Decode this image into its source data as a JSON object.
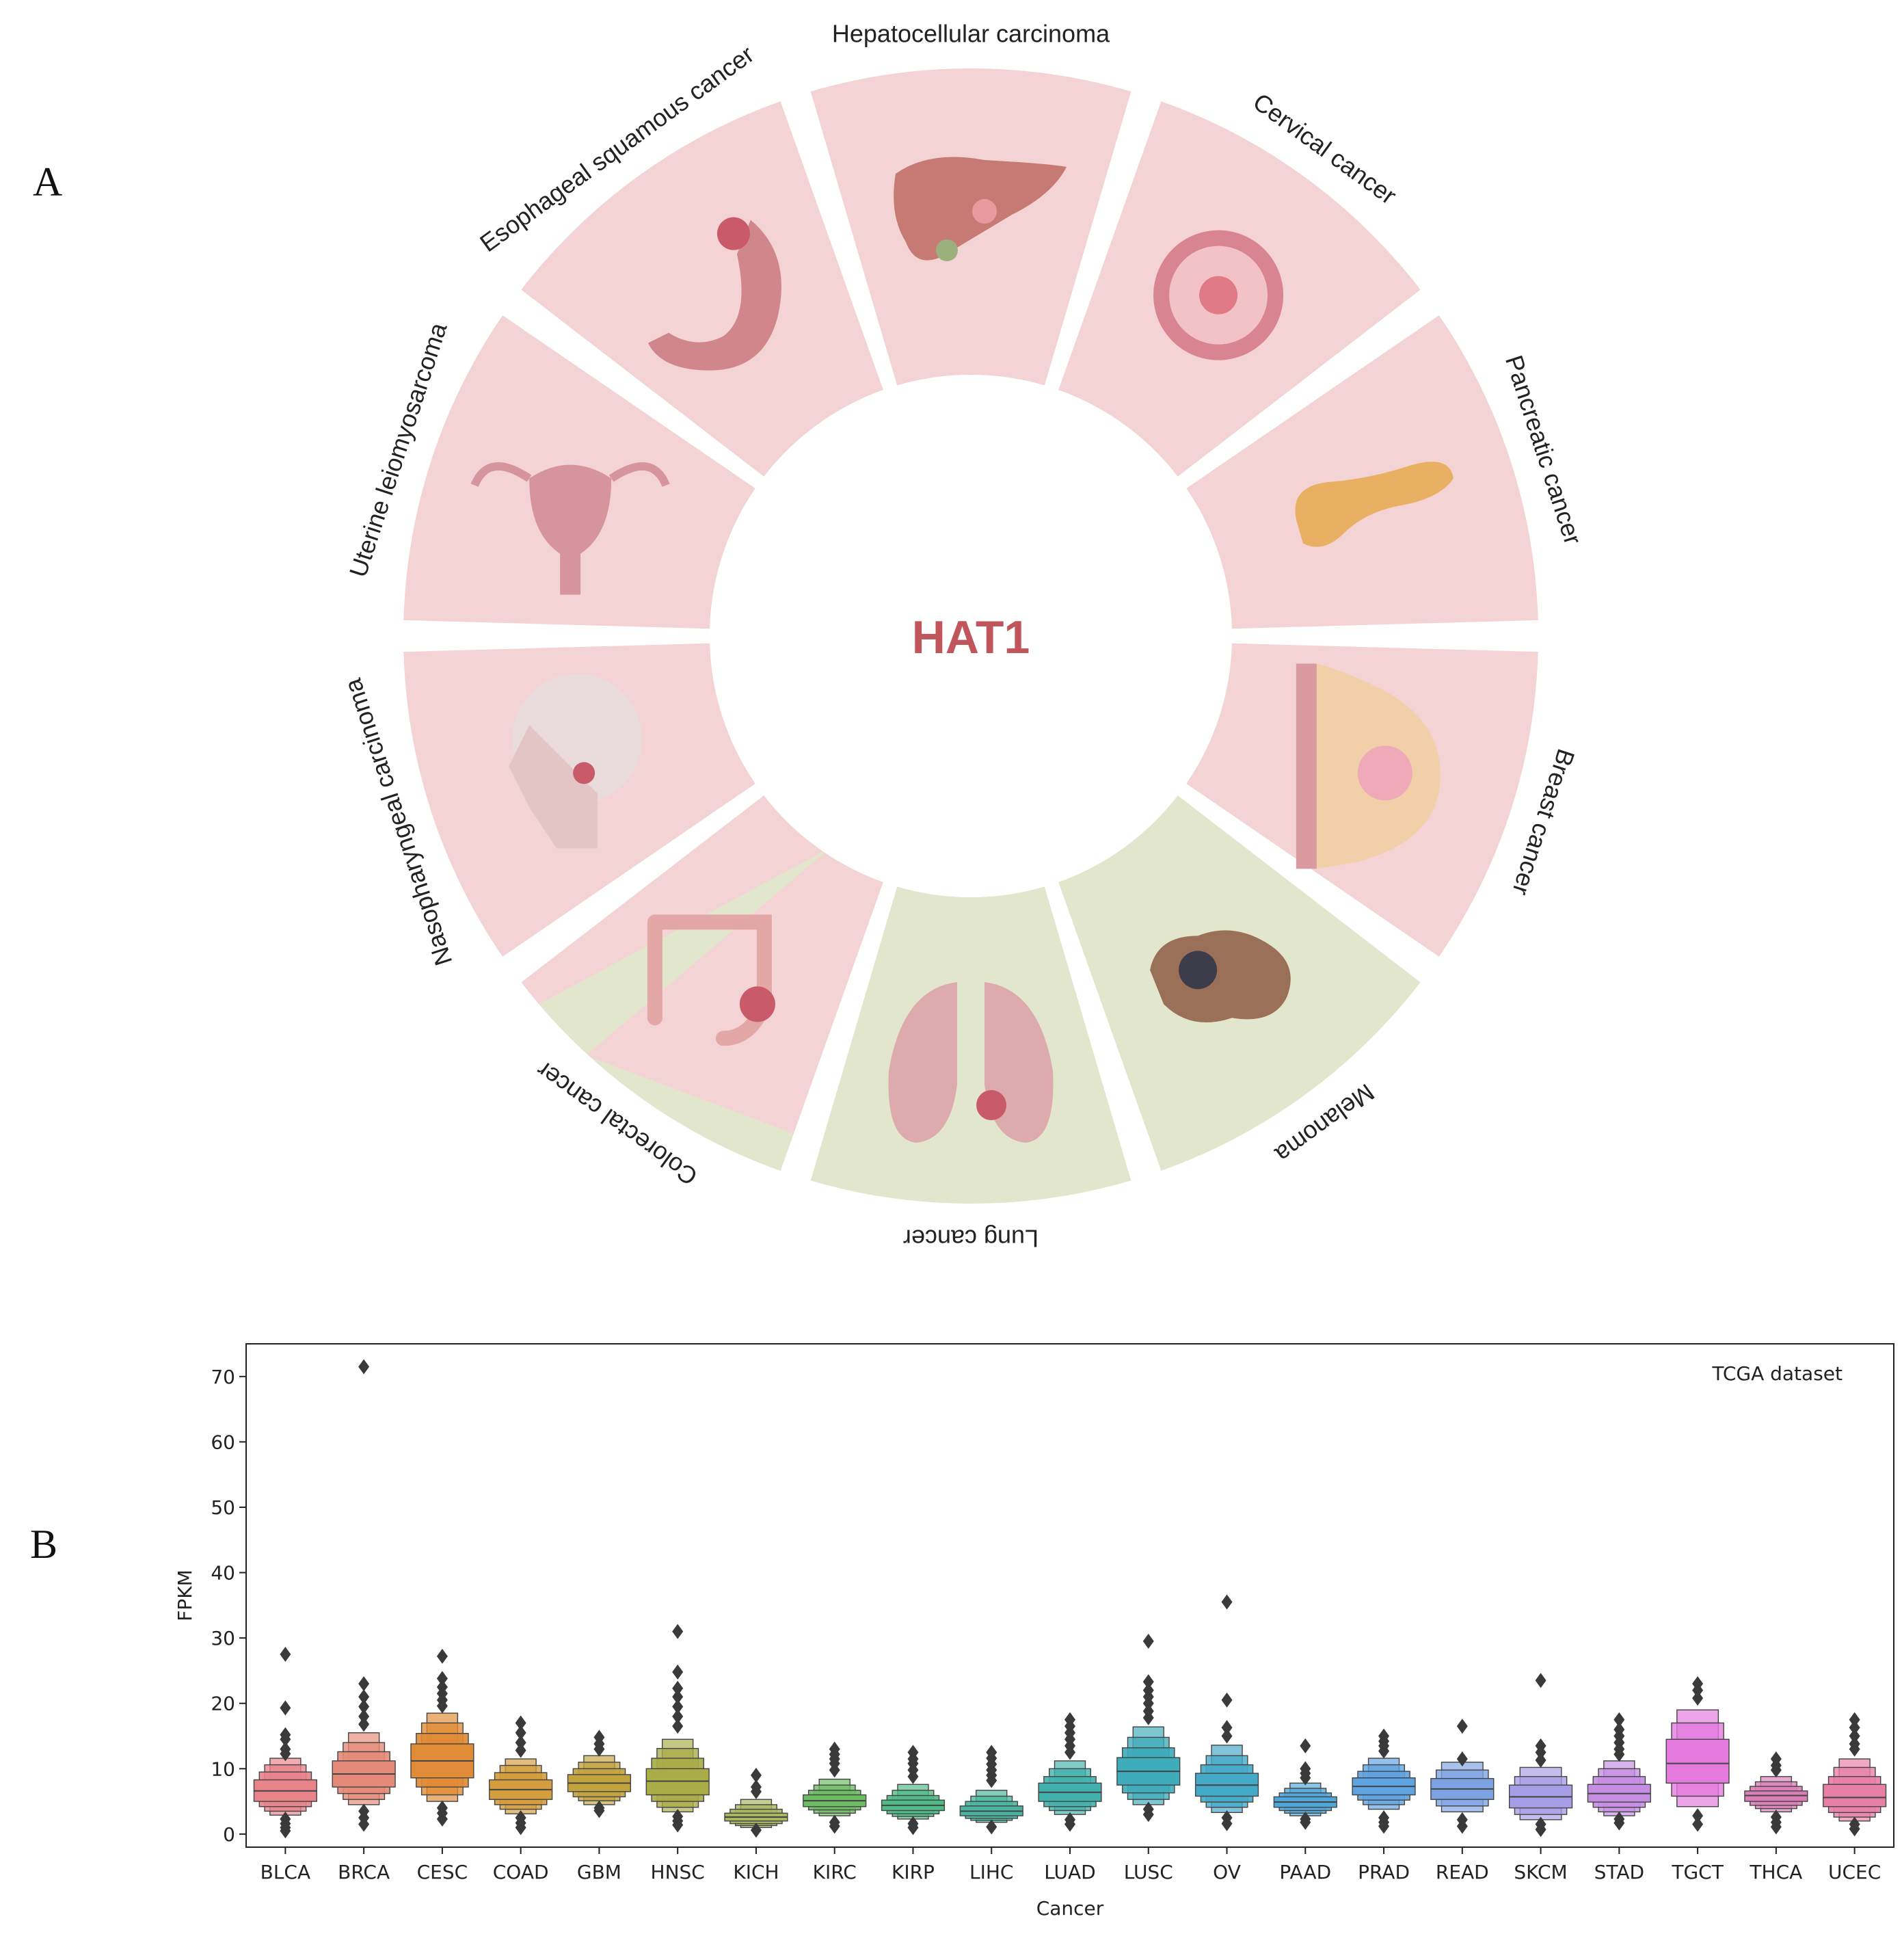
{
  "panel_a": {
    "label": "A",
    "center_title": "HAT1",
    "colors": {
      "pink": "#f4d3d5",
      "green": "#e2e6cc",
      "title": "#c0565c"
    },
    "segments": [
      {
        "name": "Hepatocellular carcinoma",
        "color": "pink",
        "icon": "liver-icon"
      },
      {
        "name": "Cervical cancer",
        "color": "pink",
        "icon": "cervix-icon"
      },
      {
        "name": "Pancreatic cancer",
        "color": "pink",
        "icon": "pancreas-icon"
      },
      {
        "name": "Breast cancer",
        "color": "pink",
        "icon": "breast-icon"
      },
      {
        "name": "Melanoma",
        "color": "green",
        "icon": "melanoma-icon"
      },
      {
        "name": "Lung cancer",
        "color": "green",
        "icon": "lungs-icon"
      },
      {
        "name": "Colorectal cancer",
        "color": "split",
        "icon": "colon-icon"
      },
      {
        "name": "Nasopharyngeal carcinoma",
        "color": "pink",
        "icon": "head-icon"
      },
      {
        "name": "Uterine leiomyosarcoma",
        "color": "pink",
        "icon": "uterus-icon"
      },
      {
        "name": "Esophageal squamous cancer",
        "color": "pink",
        "icon": "stomach-icon"
      }
    ]
  },
  "panel_b": {
    "label": "B"
  },
  "chart_data": {
    "type": "boxen",
    "title": "TCGA dataset",
    "xlabel": "Cancer",
    "ylabel": "FPKM",
    "ylim": [
      -2,
      75
    ],
    "yticks": [
      0,
      10,
      20,
      30,
      40,
      50,
      60,
      70
    ],
    "categories": [
      {
        "name": "BLCA",
        "color": "#e8838a",
        "median": 6.6,
        "levels": [
          [
            5.0,
            8.3
          ],
          [
            4.2,
            9.5
          ],
          [
            3.5,
            10.6
          ],
          [
            2.9,
            11.6
          ]
        ],
        "outliers": [
          27.5,
          19.3,
          15.2,
          14.5,
          13.0,
          12.3,
          2.3,
          1.6,
          1.0,
          0.5
        ]
      },
      {
        "name": "BRCA",
        "color": "#e58a78",
        "median": 9.2,
        "levels": [
          [
            7.2,
            11.2
          ],
          [
            6.2,
            12.6
          ],
          [
            5.3,
            14.0
          ],
          [
            4.5,
            15.5
          ]
        ],
        "outliers": [
          71.5,
          23.0,
          21.0,
          19.5,
          18.0,
          16.8,
          3.5,
          2.5,
          1.5
        ]
      },
      {
        "name": "CESC",
        "color": "#e08b35",
        "median": 11.2,
        "levels": [
          [
            8.6,
            13.8
          ],
          [
            7.2,
            15.4
          ],
          [
            6.0,
            17.0
          ],
          [
            5.0,
            18.5
          ]
        ],
        "outliers": [
          27.2,
          23.8,
          22.5,
          21.5,
          20.5,
          19.6,
          4.0,
          3.2,
          2.3
        ]
      },
      {
        "name": "COAD",
        "color": "#d49d3d",
        "median": 6.8,
        "levels": [
          [
            5.3,
            8.3
          ],
          [
            4.5,
            9.4
          ],
          [
            3.8,
            10.5
          ],
          [
            3.1,
            11.5
          ]
        ],
        "outliers": [
          17.0,
          15.5,
          14.0,
          12.8,
          2.5,
          1.7,
          1.0
        ]
      },
      {
        "name": "GBM",
        "color": "#c2a33e",
        "median": 7.8,
        "levels": [
          [
            6.5,
            9.1
          ],
          [
            5.7,
            10.0
          ],
          [
            5.1,
            11.0
          ],
          [
            4.5,
            12.0
          ]
        ],
        "outliers": [
          14.8,
          13.8,
          13.0,
          4.0,
          3.6
        ]
      },
      {
        "name": "HNSC",
        "color": "#a9ac47",
        "median": 8.1,
        "levels": [
          [
            6.0,
            10.0
          ],
          [
            5.0,
            11.6
          ],
          [
            4.1,
            13.1
          ],
          [
            3.4,
            14.5
          ]
        ],
        "outliers": [
          31.0,
          24.8,
          22.3,
          21.0,
          19.5,
          18.0,
          16.5,
          2.7,
          2.0,
          1.4
        ]
      },
      {
        "name": "KICH",
        "color": "#a7b75e",
        "median": 2.6,
        "levels": [
          [
            2.0,
            3.2
          ],
          [
            1.6,
            3.8
          ],
          [
            1.3,
            4.5
          ],
          [
            1.0,
            5.3
          ]
        ],
        "outliers": [
          9.0,
          7.2,
          6.5,
          0.6
        ]
      },
      {
        "name": "KIRC",
        "color": "#6dbc63",
        "median": 5.1,
        "levels": [
          [
            4.2,
            6.0
          ],
          [
            3.7,
            6.7
          ],
          [
            3.2,
            7.5
          ],
          [
            2.8,
            8.4
          ]
        ],
        "outliers": [
          13.0,
          12.2,
          11.5,
          10.8,
          9.8,
          1.8,
          1.2
        ]
      },
      {
        "name": "KIRP",
        "color": "#4fbb86",
        "median": 4.4,
        "levels": [
          [
            3.6,
            5.2
          ],
          [
            3.1,
            5.9
          ],
          [
            2.7,
            6.7
          ],
          [
            2.3,
            7.6
          ]
        ],
        "outliers": [
          12.5,
          11.5,
          10.8,
          9.8,
          8.8,
          1.6,
          1.0
        ]
      },
      {
        "name": "LIHC",
        "color": "#49b59e",
        "median": 3.5,
        "levels": [
          [
            2.8,
            4.3
          ],
          [
            2.4,
            5.0
          ],
          [
            2.1,
            5.8
          ],
          [
            1.8,
            6.7
          ]
        ],
        "outliers": [
          12.5,
          11.6,
          10.7,
          9.8,
          9.0,
          8.2,
          1.1
        ]
      },
      {
        "name": "LUAD",
        "color": "#42b1ad",
        "median": 6.4,
        "levels": [
          [
            5.0,
            7.8
          ],
          [
            4.2,
            8.8
          ],
          [
            3.6,
            10.0
          ],
          [
            3.0,
            11.2
          ]
        ],
        "outliers": [
          17.5,
          16.5,
          15.5,
          14.5,
          13.5,
          12.5,
          2.2,
          1.5
        ]
      },
      {
        "name": "LUSC",
        "color": "#3eacbb",
        "median": 9.6,
        "levels": [
          [
            7.5,
            11.7
          ],
          [
            6.3,
            13.2
          ],
          [
            5.3,
            14.8
          ],
          [
            4.5,
            16.4
          ]
        ],
        "outliers": [
          29.5,
          23.3,
          22.0,
          21.0,
          20.0,
          18.8,
          17.8,
          3.8,
          3.0
        ]
      },
      {
        "name": "OV",
        "color": "#45a9c8",
        "median": 7.5,
        "levels": [
          [
            5.8,
            9.3
          ],
          [
            4.9,
            10.6
          ],
          [
            4.1,
            12.0
          ],
          [
            3.3,
            13.6
          ]
        ],
        "outliers": [
          35.5,
          20.5,
          16.3,
          15.0,
          2.5,
          1.6
        ]
      },
      {
        "name": "PAAD",
        "color": "#4fa6d8",
        "median": 4.9,
        "levels": [
          [
            4.1,
            5.7
          ],
          [
            3.6,
            6.3
          ],
          [
            3.2,
            7.0
          ],
          [
            2.8,
            7.8
          ]
        ],
        "outliers": [
          13.5,
          10.0,
          9.3,
          8.6,
          2.3,
          1.8
        ]
      },
      {
        "name": "PRAD",
        "color": "#5ea3e2",
        "median": 7.3,
        "levels": [
          [
            6.0,
            8.6
          ],
          [
            5.2,
            9.6
          ],
          [
            4.5,
            10.6
          ],
          [
            3.8,
            11.6
          ]
        ],
        "outliers": [
          15.0,
          14.2,
          13.5,
          12.7,
          2.5,
          1.8,
          1.2
        ]
      },
      {
        "name": "READ",
        "color": "#7da2e4",
        "median": 6.9,
        "levels": [
          [
            5.3,
            8.5
          ],
          [
            4.3,
            9.8
          ],
          [
            3.4,
            11.0
          ]
        ],
        "outliers": [
          16.5,
          11.5,
          2.2,
          1.2
        ]
      },
      {
        "name": "SKCM",
        "color": "#a79de6",
        "median": 5.7,
        "levels": [
          [
            4.0,
            7.5
          ],
          [
            3.0,
            8.8
          ],
          [
            2.2,
            10.2
          ]
        ],
        "outliers": [
          23.5,
          13.5,
          12.5,
          11.3,
          1.5,
          0.7
        ]
      },
      {
        "name": "STAD",
        "color": "#c68ee3",
        "median": 6.2,
        "levels": [
          [
            4.9,
            7.6
          ],
          [
            4.1,
            8.8
          ],
          [
            3.4,
            10.0
          ],
          [
            2.8,
            11.2
          ]
        ],
        "outliers": [
          17.5,
          16.0,
          15.0,
          14.0,
          13.0,
          12.2,
          2.3,
          1.7
        ]
      },
      {
        "name": "TGCT",
        "color": "#e479de",
        "median": 10.8,
        "levels": [
          [
            7.8,
            14.5
          ],
          [
            5.8,
            17.0
          ],
          [
            4.2,
            19.0
          ]
        ],
        "outliers": [
          23.0,
          22.0,
          20.8,
          2.8,
          1.5
        ]
      },
      {
        "name": "THCA",
        "color": "#dc7fb9",
        "median": 5.9,
        "levels": [
          [
            5.0,
            6.6
          ],
          [
            4.4,
            7.3
          ],
          [
            3.9,
            8.0
          ],
          [
            3.4,
            8.8
          ]
        ],
        "outliers": [
          11.5,
          10.5,
          9.8,
          2.6,
          1.8,
          1.1
        ]
      },
      {
        "name": "UCEC",
        "color": "#e880a6",
        "median": 5.6,
        "levels": [
          [
            4.2,
            7.6
          ],
          [
            3.3,
            8.8
          ],
          [
            2.6,
            10.2
          ],
          [
            2.0,
            11.5
          ]
        ],
        "outliers": [
          17.5,
          16.3,
          15.0,
          13.8,
          13.0,
          1.5,
          0.8
        ]
      }
    ]
  }
}
